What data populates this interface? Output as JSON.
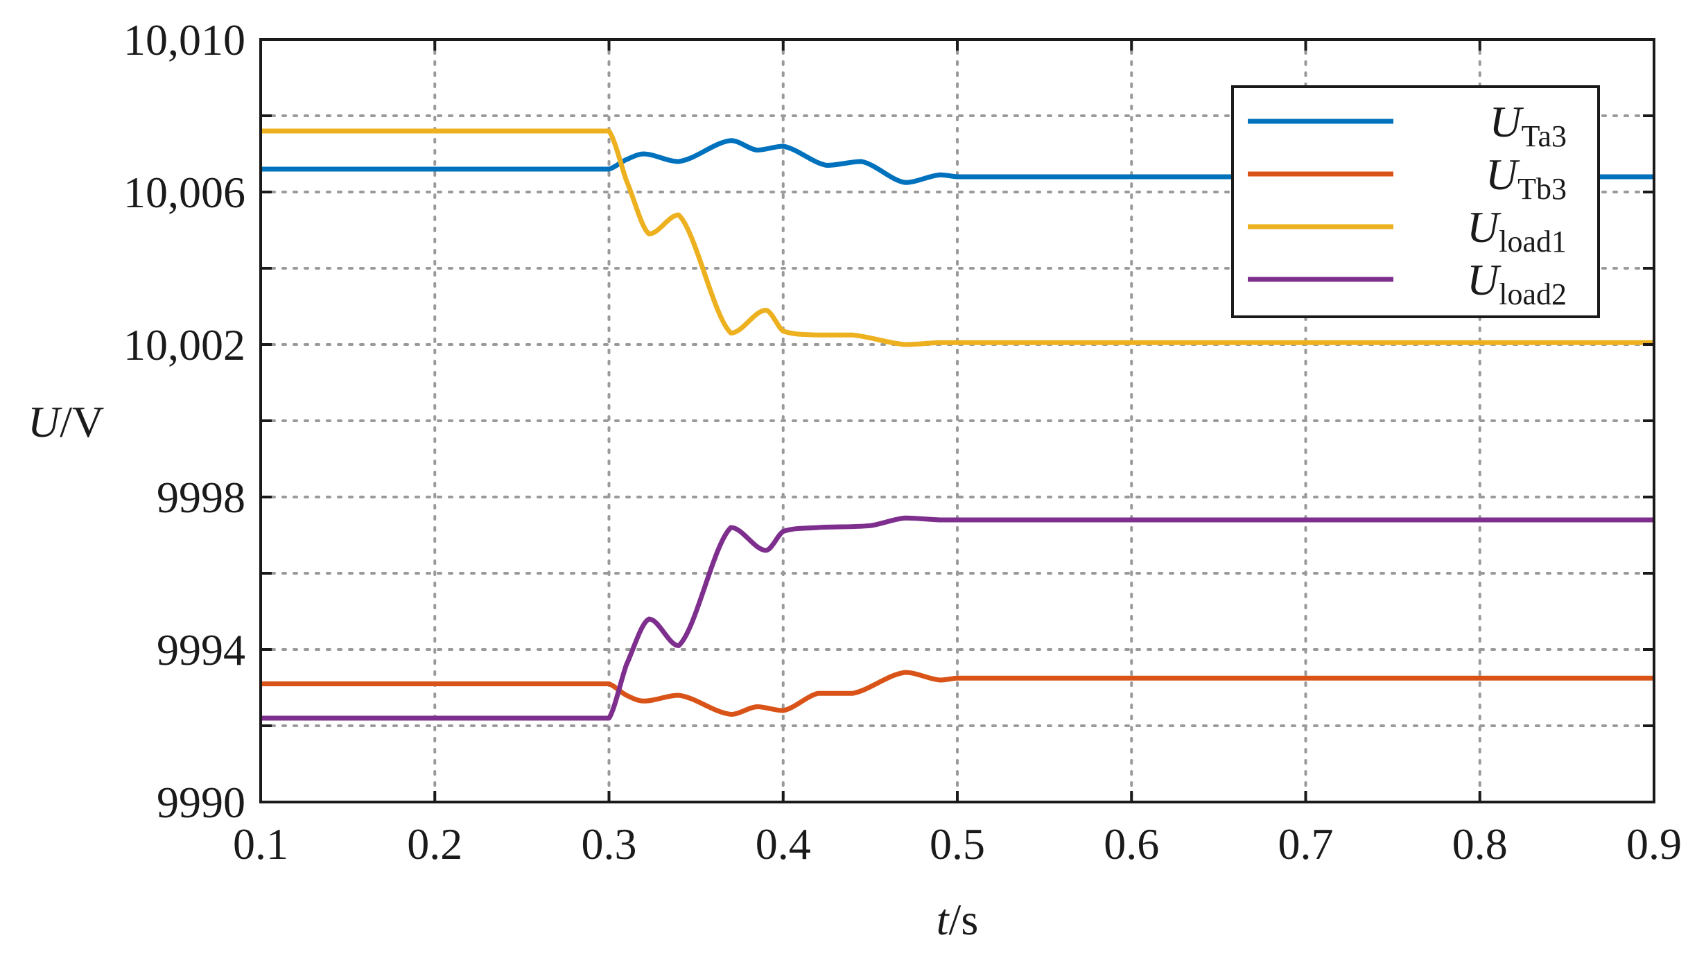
{
  "chart_data": {
    "type": "line",
    "xlabel": {
      "italic": "t",
      "rest": "/s"
    },
    "ylabel": {
      "italic": "U",
      "rest": "/V"
    },
    "xlim": [
      0.1,
      0.9
    ],
    "ylim": [
      9990,
      10010
    ],
    "x_ticks": [
      {
        "value": 0.1,
        "label": "0.1"
      },
      {
        "value": 0.2,
        "label": "0.2"
      },
      {
        "value": 0.3,
        "label": "0.3"
      },
      {
        "value": 0.4,
        "label": "0.4"
      },
      {
        "value": 0.5,
        "label": "0.5"
      },
      {
        "value": 0.6,
        "label": "0.6"
      },
      {
        "value": 0.7,
        "label": "0.7"
      },
      {
        "value": 0.8,
        "label": "0.8"
      },
      {
        "value": 0.9,
        "label": "0.9"
      }
    ],
    "y_ticks": [
      {
        "value": 9990,
        "label": "9990"
      },
      {
        "value": 9994,
        "label": "9994"
      },
      {
        "value": 9998,
        "label": "9998"
      },
      {
        "value": 10002,
        "label": "10,002"
      },
      {
        "value": 10006,
        "label": "10,006"
      },
      {
        "value": 10010,
        "label": "10,010"
      }
    ],
    "y_grid": [
      9992,
      9994,
      9996,
      9998,
      10000,
      10002,
      10004,
      10006,
      10008
    ],
    "grid": true,
    "legend_position": "top-right",
    "series": [
      {
        "name": "UTa3",
        "label_main": "U",
        "label_sub": "Ta3",
        "color": "#0072BD",
        "x": [
          0.1,
          0.3,
          0.31,
          0.32,
          0.34,
          0.37,
          0.385,
          0.4,
          0.425,
          0.445,
          0.47,
          0.49,
          0.5,
          0.9
        ],
        "y": [
          10006.6,
          10006.6,
          10006.85,
          10007.0,
          10006.8,
          10007.35,
          10007.1,
          10007.2,
          10006.7,
          10006.8,
          10006.25,
          10006.45,
          10006.4,
          10006.4
        ]
      },
      {
        "name": "UTb3",
        "label_main": "U",
        "label_sub": "Tb3",
        "color": "#D95319",
        "x": [
          0.1,
          0.3,
          0.31,
          0.32,
          0.34,
          0.37,
          0.385,
          0.4,
          0.42,
          0.44,
          0.47,
          0.49,
          0.5,
          0.9
        ],
        "y": [
          9993.1,
          9993.1,
          9992.8,
          9992.65,
          9992.8,
          9992.3,
          9992.5,
          9992.4,
          9992.85,
          9992.85,
          9993.4,
          9993.2,
          9993.25,
          9993.25
        ]
      },
      {
        "name": "Uload1",
        "label_main": "U",
        "label_sub": "load1",
        "color": "#EDB120",
        "x": [
          0.1,
          0.3,
          0.31,
          0.323,
          0.34,
          0.37,
          0.39,
          0.4,
          0.42,
          0.44,
          0.47,
          0.49,
          0.9
        ],
        "y": [
          10007.6,
          10007.6,
          10006.3,
          10004.9,
          10005.4,
          10002.3,
          10002.9,
          10002.35,
          10002.25,
          10002.25,
          10002.0,
          10002.05,
          10002.05
        ]
      },
      {
        "name": "Uload2",
        "label_main": "U",
        "label_sub": "load2",
        "color": "#7E2F8E",
        "x": [
          0.1,
          0.3,
          0.31,
          0.323,
          0.34,
          0.37,
          0.39,
          0.4,
          0.42,
          0.45,
          0.47,
          0.49,
          0.9
        ],
        "y": [
          9992.2,
          9992.2,
          9993.6,
          9994.8,
          9994.1,
          9997.2,
          9996.6,
          9997.1,
          9997.2,
          9997.25,
          9997.45,
          9997.4,
          9997.4
        ]
      }
    ]
  }
}
